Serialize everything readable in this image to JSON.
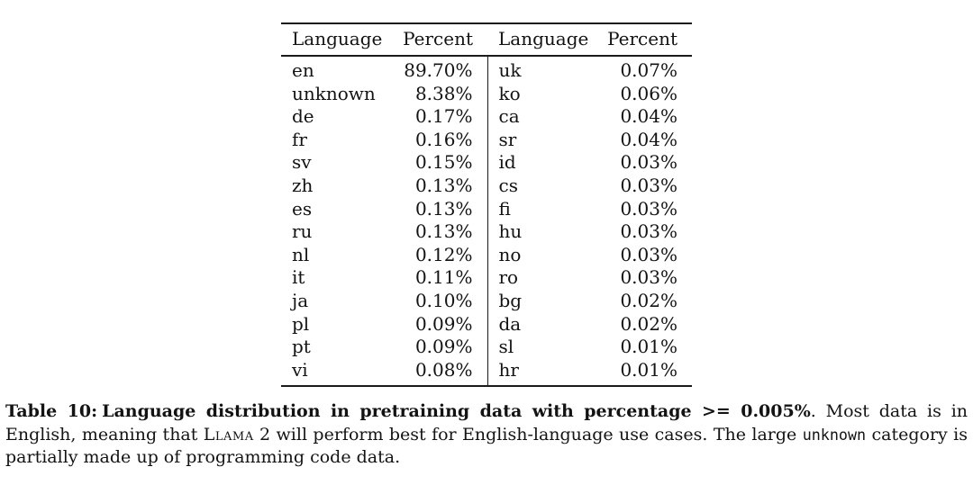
{
  "table": {
    "col_headers": [
      "Language",
      "Percent",
      "Language",
      "Percent"
    ],
    "rows": [
      [
        "en",
        "89.70%",
        "uk",
        "0.07%"
      ],
      [
        "unknown",
        "8.38%",
        "ko",
        "0.06%"
      ],
      [
        "de",
        "0.17%",
        "ca",
        "0.04%"
      ],
      [
        "fr",
        "0.16%",
        "sr",
        "0.04%"
      ],
      [
        "sv",
        "0.15%",
        "id",
        "0.03%"
      ],
      [
        "zh",
        "0.13%",
        "cs",
        "0.03%"
      ],
      [
        "es",
        "0.13%",
        "fi",
        "0.03%"
      ],
      [
        "ru",
        "0.13%",
        "hu",
        "0.03%"
      ],
      [
        "nl",
        "0.12%",
        "no",
        "0.03%"
      ],
      [
        "it",
        "0.11%",
        "ro",
        "0.03%"
      ],
      [
        "ja",
        "0.10%",
        "bg",
        "0.02%"
      ],
      [
        "pl",
        "0.09%",
        "da",
        "0.02%"
      ],
      [
        "pt",
        "0.09%",
        "sl",
        "0.01%"
      ],
      [
        "vi",
        "0.08%",
        "hr",
        "0.01%"
      ]
    ]
  },
  "caption": {
    "label": "Table 10:",
    "bold_text": "Language distribution in pretraining data with percentage >= 0.005%",
    "text_a": ". Most data is in English, meaning that ",
    "llama_smallcaps": "Llama",
    "text_b": " 2 will perform best for English-language use cases.  The large ",
    "unknown_mono": "unknown",
    "text_c": " category is partially made up of programming code data."
  },
  "colors": {
    "background": "#ffffff",
    "text": "#131313",
    "rule": "#1a1a1a"
  }
}
